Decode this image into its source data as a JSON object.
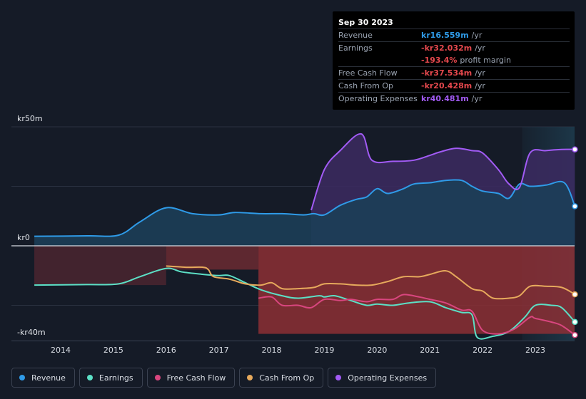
{
  "tooltip": {
    "date": "Sep 30 2023",
    "rows": [
      {
        "label": "Revenue",
        "value": "kr16.559m",
        "unit": "/yr",
        "color": "#2f9be8"
      },
      {
        "label": "Earnings",
        "value": "-kr32.032m",
        "unit": "/yr",
        "color": "#e5484d"
      },
      {
        "label": "",
        "value": "-193.4%",
        "unit": "profit margin",
        "color": "#e5484d"
      },
      {
        "label": "Free Cash Flow",
        "value": "-kr37.534m",
        "unit": "/yr",
        "color": "#e5484d"
      },
      {
        "label": "Cash From Op",
        "value": "-kr20.428m",
        "unit": "/yr",
        "color": "#e5484d"
      },
      {
        "label": "Operating Expenses",
        "value": "kr40.481m",
        "unit": "/yr",
        "color": "#a25bf5"
      }
    ]
  },
  "axis": {
    "top_label": "kr50m",
    "zero_label": "kr0",
    "bottom_label": "-kr40m"
  },
  "legend": [
    {
      "label": "Revenue",
      "color": "#2f9be8"
    },
    {
      "label": "Earnings",
      "color": "#5ce0c6"
    },
    {
      "label": "Free Cash Flow",
      "color": "#d9467f"
    },
    {
      "label": "Cash From Op",
      "color": "#e6a95c"
    },
    {
      "label": "Operating Expenses",
      "color": "#a25bf5"
    }
  ],
  "chart_data": {
    "type": "area",
    "ylim": [
      -40,
      50
    ],
    "x_range": [
      2013.0,
      2023.75
    ],
    "ticks": [
      2014,
      2015,
      2016,
      2017,
      2018,
      2019,
      2020,
      2021,
      2022,
      2023
    ],
    "gridlines": [
      50,
      25,
      0,
      -25,
      -40
    ],
    "forecast_start": 2022.75,
    "series": [
      {
        "name": "Revenue",
        "color": "#2f9be8",
        "points": [
          [
            2013.5,
            4
          ],
          [
            2014.5,
            4.2
          ],
          [
            2015.1,
            4.5
          ],
          [
            2015.5,
            10
          ],
          [
            2016.0,
            16
          ],
          [
            2016.5,
            13.5
          ],
          [
            2017.0,
            13
          ],
          [
            2017.3,
            14
          ],
          [
            2017.8,
            13.5
          ],
          [
            2018.2,
            13.5
          ],
          [
            2018.6,
            13
          ],
          [
            2018.8,
            13.5
          ],
          [
            2019.0,
            13
          ],
          [
            2019.3,
            17
          ],
          [
            2019.6,
            19.5
          ],
          [
            2019.8,
            20.5
          ],
          [
            2020.0,
            24
          ],
          [
            2020.2,
            22
          ],
          [
            2020.5,
            24
          ],
          [
            2020.7,
            26
          ],
          [
            2021.0,
            26.5
          ],
          [
            2021.3,
            27.5
          ],
          [
            2021.6,
            27.5
          ],
          [
            2021.8,
            25
          ],
          [
            2022.0,
            23
          ],
          [
            2022.3,
            22
          ],
          [
            2022.5,
            20
          ],
          [
            2022.7,
            26
          ],
          [
            2022.9,
            25
          ],
          [
            2023.2,
            25.5
          ],
          [
            2023.55,
            26.5
          ],
          [
            2023.75,
            16.6
          ]
        ]
      },
      {
        "name": "Operating Expenses",
        "color": "#a25bf5",
        "points": [
          [
            2018.75,
            15
          ],
          [
            2019.0,
            32
          ],
          [
            2019.3,
            40
          ],
          [
            2019.7,
            47
          ],
          [
            2019.9,
            36
          ],
          [
            2020.3,
            35.5
          ],
          [
            2020.7,
            36
          ],
          [
            2021.0,
            38
          ],
          [
            2021.2,
            39.5
          ],
          [
            2021.5,
            41
          ],
          [
            2021.8,
            40
          ],
          [
            2022.0,
            39
          ],
          [
            2022.3,
            32
          ],
          [
            2022.5,
            26
          ],
          [
            2022.7,
            24.5
          ],
          [
            2022.9,
            39
          ],
          [
            2023.2,
            40
          ],
          [
            2023.5,
            40.5
          ],
          [
            2023.75,
            40.5
          ]
        ]
      },
      {
        "name": "Earnings",
        "color": "#5ce0c6",
        "points": [
          [
            2013.5,
            -16.5
          ],
          [
            2014.5,
            -16.3
          ],
          [
            2015.1,
            -16
          ],
          [
            2015.5,
            -13
          ],
          [
            2016.0,
            -9.5
          ],
          [
            2016.3,
            -11
          ],
          [
            2016.7,
            -12
          ],
          [
            2017.0,
            -12.5
          ],
          [
            2017.2,
            -12.5
          ],
          [
            2017.5,
            -15.5
          ],
          [
            2017.8,
            -18.5
          ],
          [
            2018.2,
            -21
          ],
          [
            2018.5,
            -22
          ],
          [
            2018.9,
            -21
          ],
          [
            2019.0,
            -21.5
          ],
          [
            2019.2,
            -21
          ],
          [
            2019.5,
            -23
          ],
          [
            2019.8,
            -25
          ],
          [
            2020.0,
            -24.5
          ],
          [
            2020.3,
            -25
          ],
          [
            2020.6,
            -24
          ],
          [
            2021.0,
            -23.5
          ],
          [
            2021.3,
            -26
          ],
          [
            2021.6,
            -28
          ],
          [
            2021.8,
            -29
          ],
          [
            2021.9,
            -38.5
          ],
          [
            2022.2,
            -38
          ],
          [
            2022.5,
            -36
          ],
          [
            2022.8,
            -30
          ],
          [
            2023.0,
            -25
          ],
          [
            2023.3,
            -25
          ],
          [
            2023.5,
            -26
          ],
          [
            2023.75,
            -32
          ]
        ]
      },
      {
        "name": "Free Cash Flow",
        "color": "#d9467f",
        "points": [
          [
            2017.75,
            -22
          ],
          [
            2018.0,
            -21.5
          ],
          [
            2018.2,
            -25
          ],
          [
            2018.5,
            -25
          ],
          [
            2018.75,
            -26
          ],
          [
            2019.0,
            -22.5
          ],
          [
            2019.3,
            -23
          ],
          [
            2019.5,
            -22.5
          ],
          [
            2019.8,
            -23.5
          ],
          [
            2020.0,
            -22.5
          ],
          [
            2020.3,
            -22.5
          ],
          [
            2020.5,
            -20.5
          ],
          [
            2020.8,
            -21.5
          ],
          [
            2021.0,
            -22.5
          ],
          [
            2021.3,
            -24
          ],
          [
            2021.6,
            -27
          ],
          [
            2021.8,
            -27.5
          ],
          [
            2022.0,
            -35.5
          ],
          [
            2022.3,
            -37
          ],
          [
            2022.6,
            -35
          ],
          [
            2022.9,
            -30
          ],
          [
            2023.0,
            -30.5
          ],
          [
            2023.3,
            -32
          ],
          [
            2023.5,
            -33.5
          ],
          [
            2023.75,
            -37.5
          ]
        ]
      },
      {
        "name": "Cash From Op",
        "color": "#e6a95c",
        "points": [
          [
            2016.0,
            -8.5
          ],
          [
            2016.4,
            -9
          ],
          [
            2016.7,
            -9
          ],
          [
            2016.8,
            -10
          ],
          [
            2016.9,
            -13
          ],
          [
            2017.2,
            -14
          ],
          [
            2017.5,
            -16
          ],
          [
            2017.8,
            -16.5
          ],
          [
            2018.0,
            -15.5
          ],
          [
            2018.2,
            -18
          ],
          [
            2018.5,
            -18
          ],
          [
            2018.8,
            -17.5
          ],
          [
            2019.0,
            -16
          ],
          [
            2019.3,
            -16
          ],
          [
            2019.6,
            -16.5
          ],
          [
            2019.9,
            -16.5
          ],
          [
            2020.2,
            -15
          ],
          [
            2020.5,
            -13
          ],
          [
            2020.8,
            -13
          ],
          [
            2021.0,
            -12
          ],
          [
            2021.3,
            -10.5
          ],
          [
            2021.5,
            -13
          ],
          [
            2021.8,
            -18
          ],
          [
            2022.0,
            -19
          ],
          [
            2022.2,
            -22
          ],
          [
            2022.5,
            -22
          ],
          [
            2022.7,
            -21
          ],
          [
            2022.9,
            -17
          ],
          [
            2023.2,
            -17
          ],
          [
            2023.5,
            -17.5
          ],
          [
            2023.75,
            -20.4
          ]
        ]
      }
    ],
    "negative_band_earnings": {
      "x": [
        2013.5,
        2016.0
      ],
      "value": -16.5
    },
    "negative_band_fcf": {
      "x": [
        2016.0,
        2017.75
      ],
      "value": -10
    },
    "negative_band_cfo": {
      "x": [
        2017.75,
        2023.75
      ],
      "value": -37
    }
  }
}
